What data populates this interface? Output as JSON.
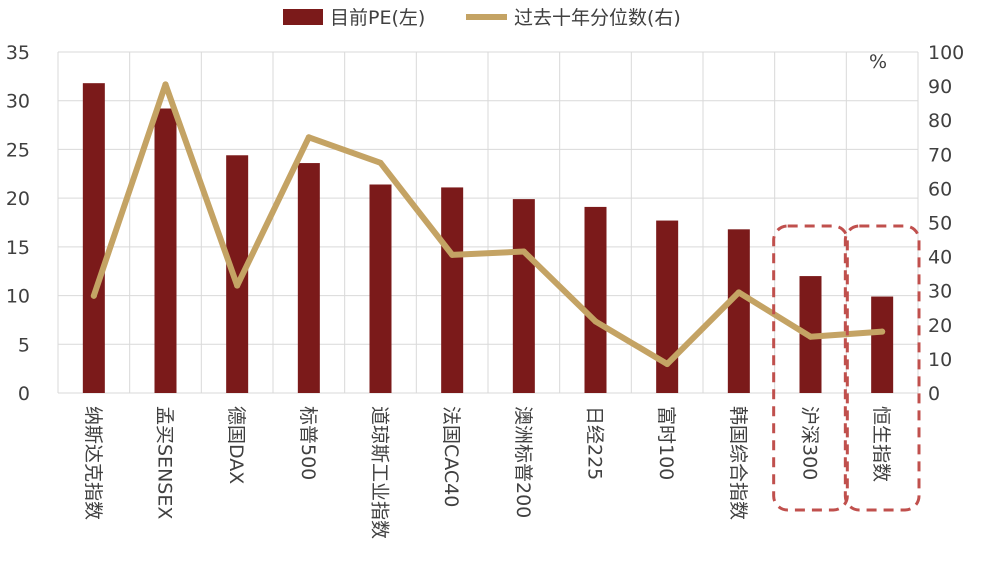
{
  "chart_data": {
    "type": "bar",
    "categories": [
      "纳斯达克指数",
      "孟买SENSEX",
      "德国DAX",
      "标普500",
      "道琼斯工业指数",
      "法国CAC40",
      "澳洲标普200",
      "日经225",
      "富时100",
      "韩国综合指数",
      "沪深300",
      "恒生指数"
    ],
    "series": [
      {
        "name": "目前PE(左)",
        "type": "bar",
        "axis": "left",
        "color": "#7b1a1a",
        "values": [
          31.8,
          29.2,
          24.4,
          23.6,
          21.4,
          21.1,
          19.9,
          19.1,
          17.7,
          16.8,
          12.0,
          9.9
        ]
      },
      {
        "name": "过去十年分位数(右)",
        "type": "line",
        "axis": "right",
        "color": "#c4a364",
        "values": [
          28.5,
          90.5,
          31.5,
          75.0,
          67.5,
          40.5,
          41.5,
          21.0,
          8.5,
          29.5,
          16.5,
          18.0
        ]
      }
    ],
    "y_left": {
      "min": 0,
      "max": 35,
      "ticks": [
        0,
        5,
        10,
        15,
        20,
        25,
        30,
        35
      ]
    },
    "y_right": {
      "min": 0,
      "max": 100,
      "ticks": [
        0,
        10,
        20,
        30,
        40,
        50,
        60,
        70,
        80,
        90,
        100
      ],
      "unit_label": "%"
    },
    "legend_position": "top-center",
    "highlight_categories": [
      "沪深300",
      "恒生指数"
    ],
    "highlight_color": "#c0504d",
    "grid": true
  }
}
